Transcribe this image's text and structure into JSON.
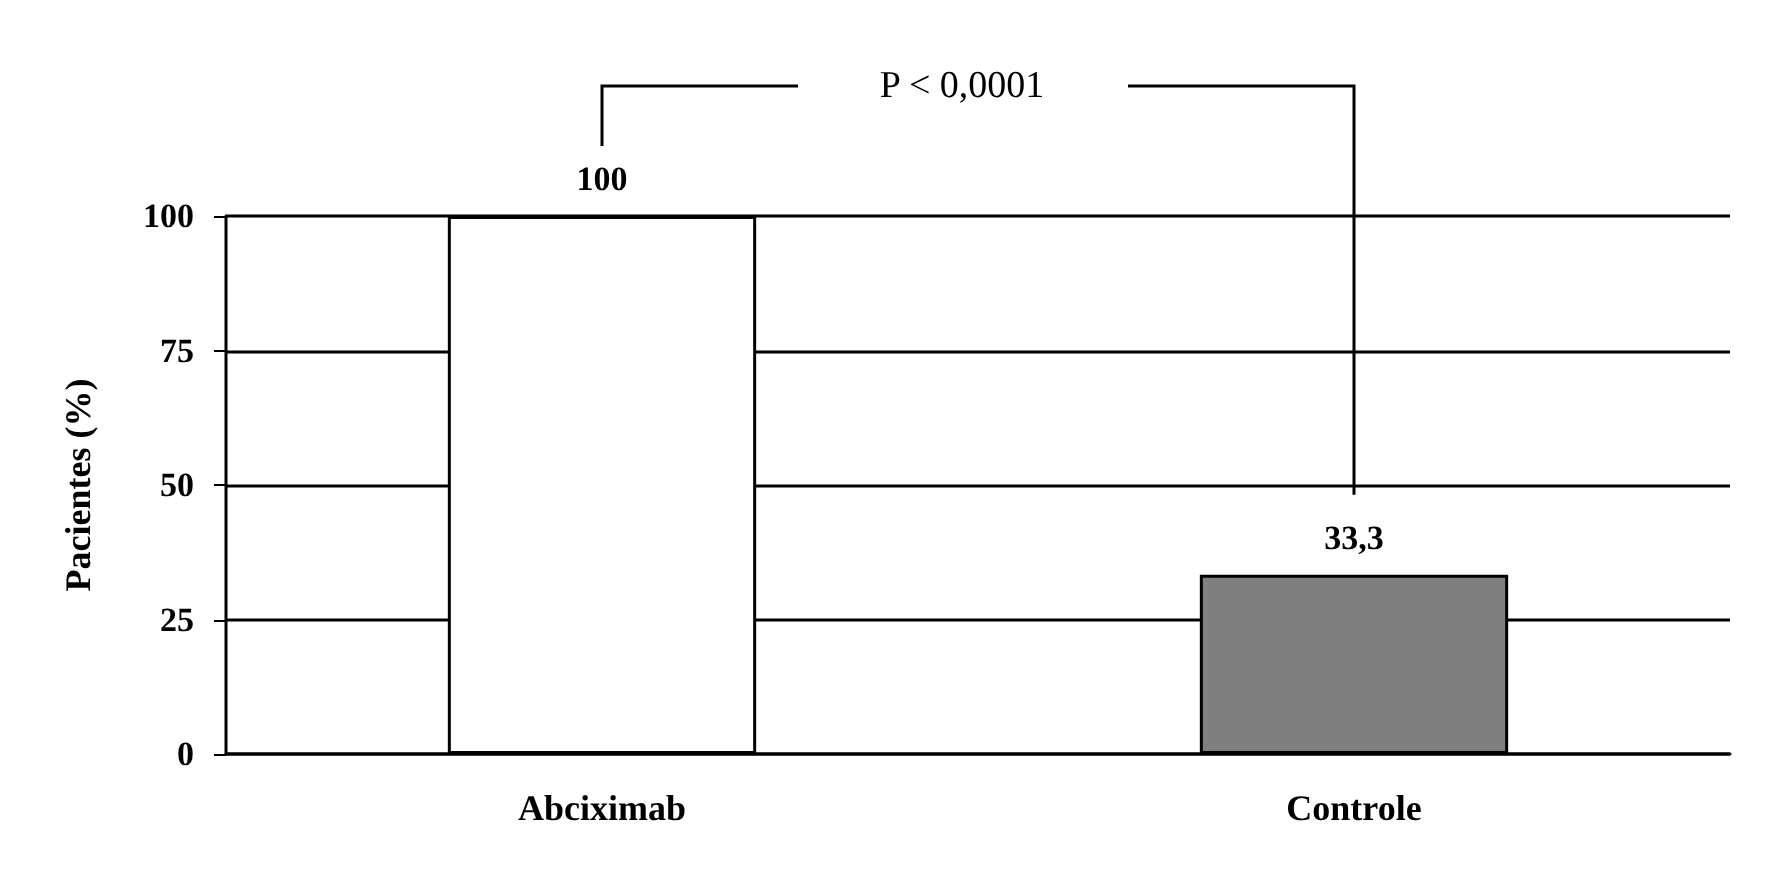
{
  "chart_data": {
    "type": "bar",
    "ylabel": "Pacientes (%)",
    "categories": [
      "Abciximab",
      "Controle"
    ],
    "values": [
      100,
      33.3
    ],
    "colors": [
      "#ffffff",
      "#7f7f7f"
    ],
    "value_labels": [
      "100",
      "33,3"
    ],
    "ylim": [
      0,
      100
    ],
    "yticks": [
      0,
      25,
      50,
      75,
      100
    ],
    "grid": "y",
    "annotations": [
      "P < 0,0001"
    ]
  }
}
